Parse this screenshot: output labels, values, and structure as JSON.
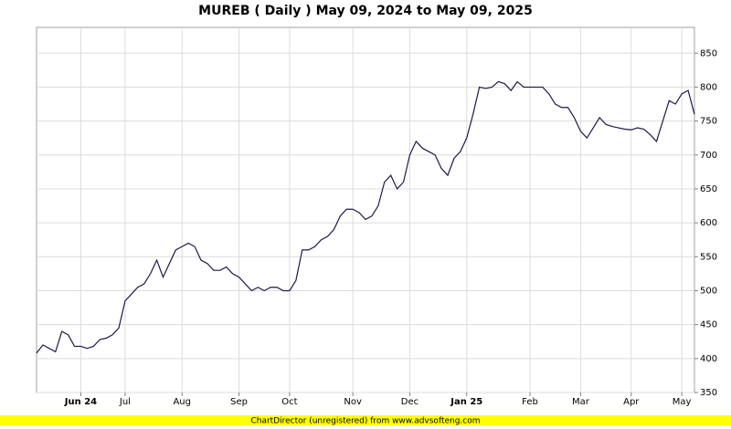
{
  "chart_data": {
    "type": "line",
    "title": "MUREB ( Daily ) May 09, 2024 to May 09, 2025",
    "categories": [
      null,
      null,
      null,
      null,
      null,
      null,
      null,
      "Jun 24",
      null,
      null,
      null,
      null,
      null,
      null,
      "Jul",
      null,
      null,
      null,
      null,
      null,
      null,
      null,
      null,
      "Aug",
      null,
      null,
      null,
      null,
      null,
      null,
      null,
      null,
      "Sep",
      null,
      null,
      null,
      null,
      null,
      null,
      null,
      "Oct",
      null,
      null,
      null,
      null,
      null,
      null,
      null,
      null,
      null,
      "Nov",
      null,
      null,
      null,
      null,
      null,
      null,
      null,
      null,
      "Dec",
      null,
      null,
      null,
      null,
      null,
      null,
      null,
      null,
      "Jan 25",
      null,
      null,
      null,
      null,
      null,
      null,
      null,
      null,
      null,
      "Feb",
      null,
      null,
      null,
      null,
      null,
      null,
      null,
      "Mar",
      null,
      null,
      null,
      null,
      null,
      null,
      null,
      "Apr",
      null,
      null,
      null,
      null,
      null,
      null,
      null,
      "May",
      null,
      null
    ],
    "values": [
      408,
      420,
      415,
      410,
      440,
      435,
      418,
      418,
      415,
      418,
      428,
      430,
      435,
      445,
      485,
      495,
      505,
      510,
      525,
      545,
      520,
      540,
      560,
      565,
      570,
      565,
      545,
      540,
      530,
      530,
      535,
      525,
      520,
      510,
      500,
      505,
      500,
      505,
      505,
      500,
      500,
      515,
      560,
      560,
      565,
      575,
      580,
      590,
      610,
      620,
      620,
      615,
      605,
      610,
      625,
      660,
      670,
      650,
      660,
      700,
      720,
      710,
      705,
      700,
      680,
      670,
      695,
      705,
      725,
      760,
      800,
      798,
      800,
      808,
      805,
      795,
      808,
      800,
      800,
      800,
      800,
      790,
      775,
      770,
      770,
      755,
      735,
      725,
      740,
      755,
      745,
      742,
      740,
      738,
      737,
      740,
      738,
      730,
      720,
      750,
      780,
      775,
      790,
      795,
      760
    ],
    "color": "#1a1a4a",
    "ylim": [
      350,
      888
    ],
    "yticks": [
      350,
      400,
      450,
      500,
      550,
      600,
      650,
      700,
      750,
      800,
      850
    ],
    "grid": true
  },
  "footer": "ChartDirector (unregistered) from www.advsofteng.com"
}
